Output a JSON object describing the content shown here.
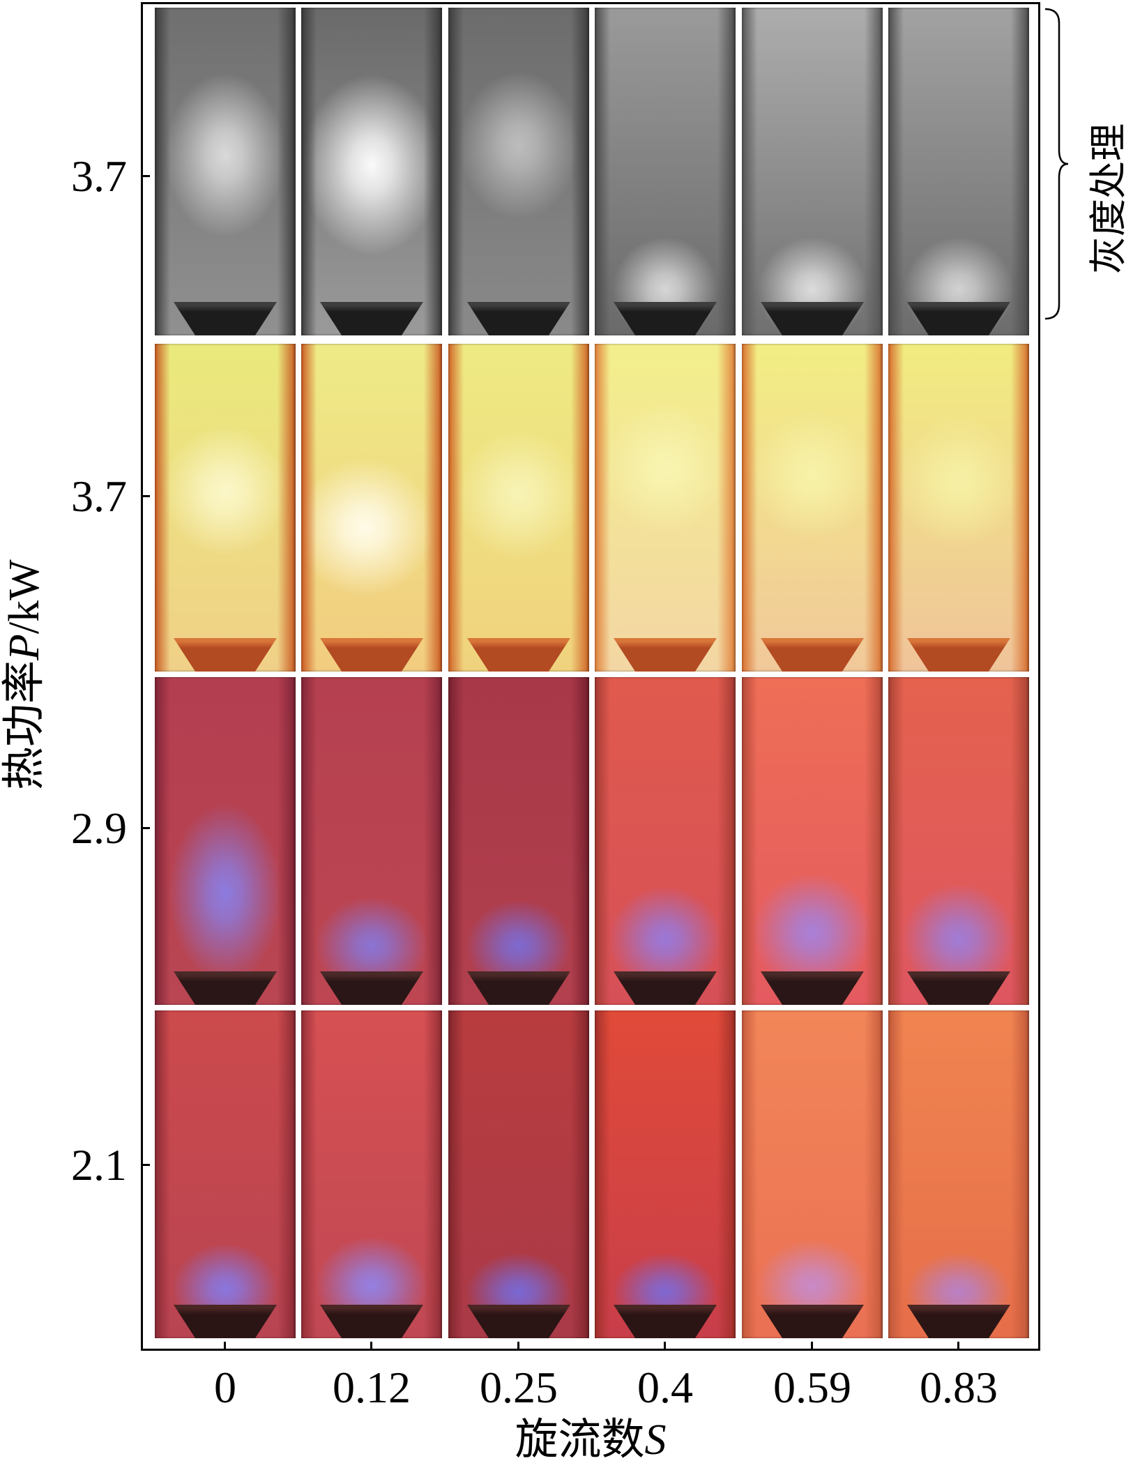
{
  "chart_data": {
    "type": "table",
    "xlabel": "旋流数S",
    "ylabel": "热功率P/kW",
    "x_ticks": [
      "0",
      "0.12",
      "0.25",
      "0.4",
      "0.59",
      "0.83"
    ],
    "y_ticks": [
      "3.7",
      "3.7",
      "2.9",
      "2.1"
    ],
    "annotation": "灰度处理",
    "grid": false
  },
  "photos": [
    {
      "burner": "#1c1c1c",
      "burner_rim": "#3e3e3e",
      "panels": [
        {
          "top": "#6f6f6f",
          "bottom": "#909090",
          "edge": "#3b3b3b",
          "glow": "#d9d9d9"
        },
        {
          "top": "#6a6a6a",
          "bottom": "#9a9a9a",
          "edge": "#3a3a3a",
          "glow": "#fafafa"
        },
        {
          "top": "#6c6c6c",
          "bottom": "#8a8a8a",
          "edge": "#3c3c3c",
          "glow": "#bdbdbd"
        },
        {
          "top": "#9a9a9a",
          "bottom": "#6a6a6a",
          "edge": "#4a4a4a",
          "glow": "#d6d6d6"
        },
        {
          "top": "#adadad",
          "bottom": "#707070",
          "edge": "#555555",
          "glow": "#dcdcdc"
        },
        {
          "top": "#a2a2a2",
          "bottom": "#6c6c6c",
          "edge": "#4c4c4c",
          "glow": "#d2d2d2"
        }
      ]
    },
    {
      "burner": "#b24a22",
      "burner_rim": "#d8763a",
      "panels": [
        {
          "top": "#eaea7c",
          "bottom": "#f0d088",
          "edge": "#c85a22",
          "glow": "#fbf7c8"
        },
        {
          "top": "#eeeb86",
          "bottom": "#f2cc80",
          "edge": "#cc5a22",
          "glow": "#fffbe8"
        },
        {
          "top": "#eeea82",
          "bottom": "#f0d27e",
          "edge": "#d06426",
          "glow": "#f7f3b4"
        },
        {
          "top": "#f3ef8c",
          "bottom": "#f3d6a4",
          "edge": "#e0803a",
          "glow": "#f8f4b0"
        },
        {
          "top": "#f2ee84",
          "bottom": "#f1c89a",
          "edge": "#d8702e",
          "glow": "#f7f2a8"
        },
        {
          "top": "#f1ec80",
          "bottom": "#f0c49a",
          "edge": "#d66c2c",
          "glow": "#f6f0a4"
        }
      ]
    },
    {
      "burner": "#2a1616",
      "burner_rim": "#4a2a28",
      "panels": [
        {
          "top": "#b33e50",
          "bottom": "#b94652",
          "edge": "#7e2436",
          "glow": "#8c7ce0"
        },
        {
          "top": "#b5404f",
          "bottom": "#bd4652",
          "edge": "#802638",
          "glow": "#8a74d4"
        },
        {
          "top": "#a83848",
          "bottom": "#b2404e",
          "edge": "#76202e",
          "glow": "#7e6ad0"
        },
        {
          "top": "#e05a4e",
          "bottom": "#d65058",
          "edge": "#a23a32",
          "glow": "#9a78d8"
        },
        {
          "top": "#ee6e56",
          "bottom": "#e45a60",
          "edge": "#b24838",
          "glow": "#a880d8"
        },
        {
          "top": "#e4624e",
          "bottom": "#de5660",
          "edge": "#a84234",
          "glow": "#a07cd6"
        }
      ]
    },
    {
      "burner": "#2a1414",
      "burner_rim": "#4a2624",
      "panels": [
        {
          "top": "#cc4a4c",
          "bottom": "#b84452",
          "edge": "#8a2a34",
          "glow": "#8a76de"
        },
        {
          "top": "#d65052",
          "bottom": "#c04854",
          "edge": "#922e36",
          "glow": "#9480e2"
        },
        {
          "top": "#b83c3e",
          "bottom": "#aa3a48",
          "edge": "#80262c",
          "glow": "#7a68d4"
        },
        {
          "top": "#e04a38",
          "bottom": "#c83e4a",
          "edge": "#a0302a",
          "glow": "#8068d2"
        },
        {
          "top": "#f28658",
          "bottom": "#ea7054",
          "edge": "#c45a3c",
          "glow": "#c88ac8"
        },
        {
          "top": "#f08450",
          "bottom": "#e66e4a",
          "edge": "#c0583a",
          "glow": "#b880c4"
        }
      ]
    }
  ]
}
